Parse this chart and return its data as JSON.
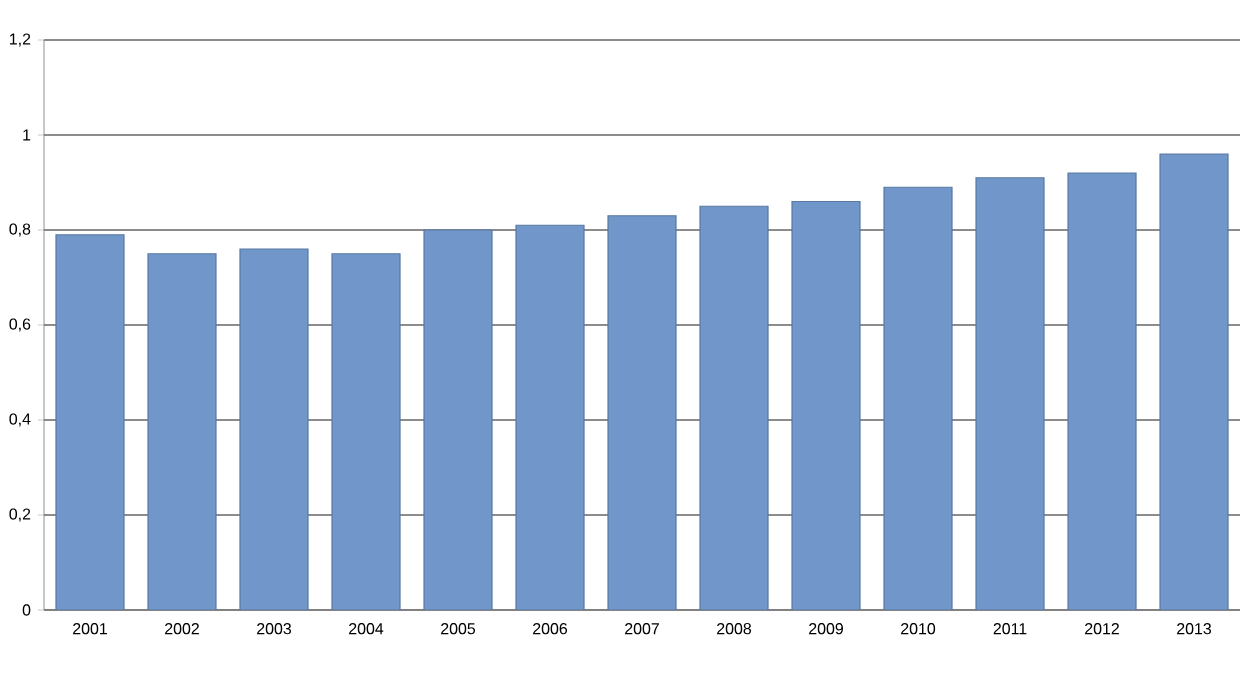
{
  "chart_data": {
    "type": "bar",
    "categories": [
      "2001",
      "2002",
      "2003",
      "2004",
      "2005",
      "2006",
      "2007",
      "2008",
      "2009",
      "2010",
      "2011",
      "2012",
      "2013"
    ],
    "values": [
      0.79,
      0.75,
      0.76,
      0.75,
      0.8,
      0.81,
      0.83,
      0.85,
      0.86,
      0.89,
      0.91,
      0.92,
      0.96
    ],
    "color": "#7196c9",
    "ylim": [
      0,
      1.2
    ],
    "yticks": [
      {
        "value": 0,
        "label": "0"
      },
      {
        "value": 0.2,
        "label": "0,2"
      },
      {
        "value": 0.4,
        "label": "0,4"
      },
      {
        "value": 0.6,
        "label": "0,6"
      },
      {
        "value": 0.8,
        "label": "0,8"
      },
      {
        "value": 1,
        "label": "1"
      },
      {
        "value": 1.2,
        "label": "1,2"
      }
    ],
    "grid": "y"
  }
}
